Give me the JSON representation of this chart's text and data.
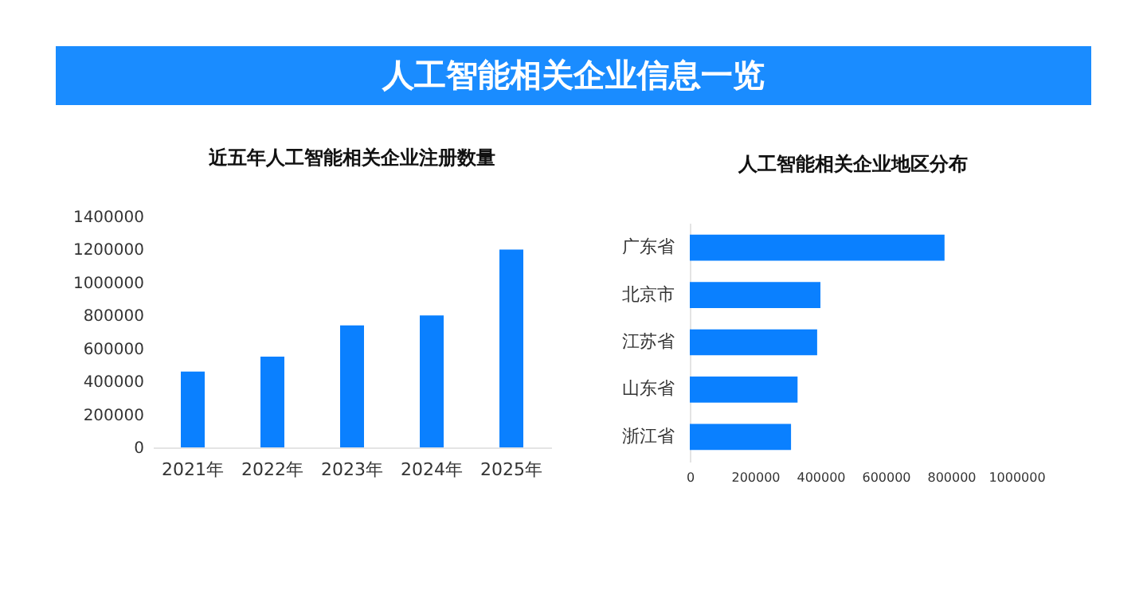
{
  "chart_data": [
    {
      "type": "other",
      "title": "人工智能相关企业信息一览"
    },
    {
      "type": "bar",
      "title": "近五年人工智能相关企业注册数量",
      "categories": [
        "2021年",
        "2022年",
        "2023年",
        "2024年",
        "2025年"
      ],
      "values": [
        460000,
        550000,
        740000,
        800000,
        1200000
      ],
      "color": "#0a80ff",
      "ylim": [
        0,
        1400000
      ],
      "yticks": [
        0,
        200000,
        400000,
        600000,
        800000,
        1000000,
        1200000,
        1400000
      ]
    },
    {
      "type": "bar",
      "orientation": "horizontal",
      "title": "人工智能相关企业地区分布",
      "categories": [
        "广东省",
        "北京市",
        "江苏省",
        "山东省",
        "浙江省"
      ],
      "values": [
        780000,
        400000,
        390000,
        330000,
        310000
      ],
      "color": "#0a80ff",
      "xlim": [
        0,
        1000000
      ],
      "xticks": [
        0,
        200000,
        400000,
        600000,
        800000,
        1000000
      ]
    }
  ]
}
